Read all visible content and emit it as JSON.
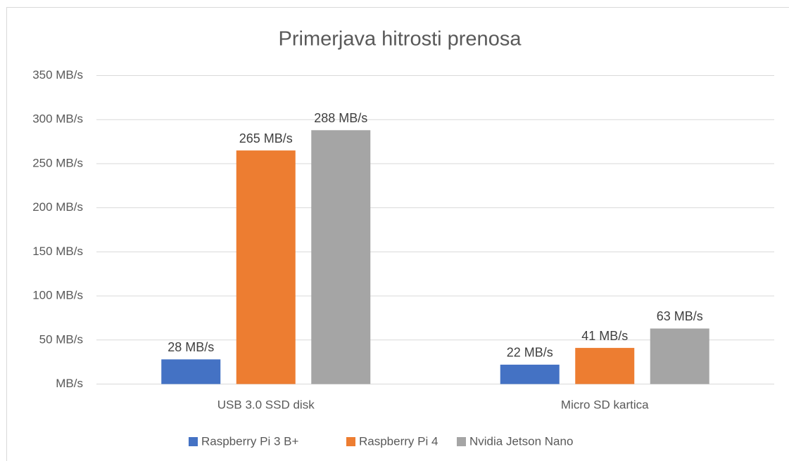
{
  "chart_data": {
    "type": "bar",
    "title": "Primerjava hitrosti prenosa",
    "categories": [
      "USB 3.0 SSD disk",
      "Micro SD kartica"
    ],
    "series": [
      {
        "name": "Raspberry Pi 3 B+",
        "color": "#4472c4",
        "values": [
          28,
          22
        ],
        "value_labels": [
          "28 MB/s",
          "22 MB/s"
        ]
      },
      {
        "name": "Raspberry Pi 4",
        "color": "#ed7d31",
        "values": [
          265,
          41
        ],
        "value_labels": [
          "265 MB/s",
          "41 MB/s"
        ]
      },
      {
        "name": "Nvidia Jetson Nano",
        "color": "#a5a5a5",
        "values": [
          288,
          63
        ],
        "value_labels": [
          "288 MB/s",
          "63 MB/s"
        ]
      }
    ],
    "ylim": [
      0,
      350
    ],
    "yticks": [
      {
        "value": 0,
        "label": "MB/s"
      },
      {
        "value": 50,
        "label": "50 MB/s"
      },
      {
        "value": 100,
        "label": "100 MB/s"
      },
      {
        "value": 150,
        "label": "150 MB/s"
      },
      {
        "value": 200,
        "label": "200 MB/s"
      },
      {
        "value": 250,
        "label": "250 MB/s"
      },
      {
        "value": 300,
        "label": "300 MB/s"
      },
      {
        "value": 350,
        "label": "350 MB/s"
      }
    ],
    "grid": true,
    "legend": "bottom"
  }
}
